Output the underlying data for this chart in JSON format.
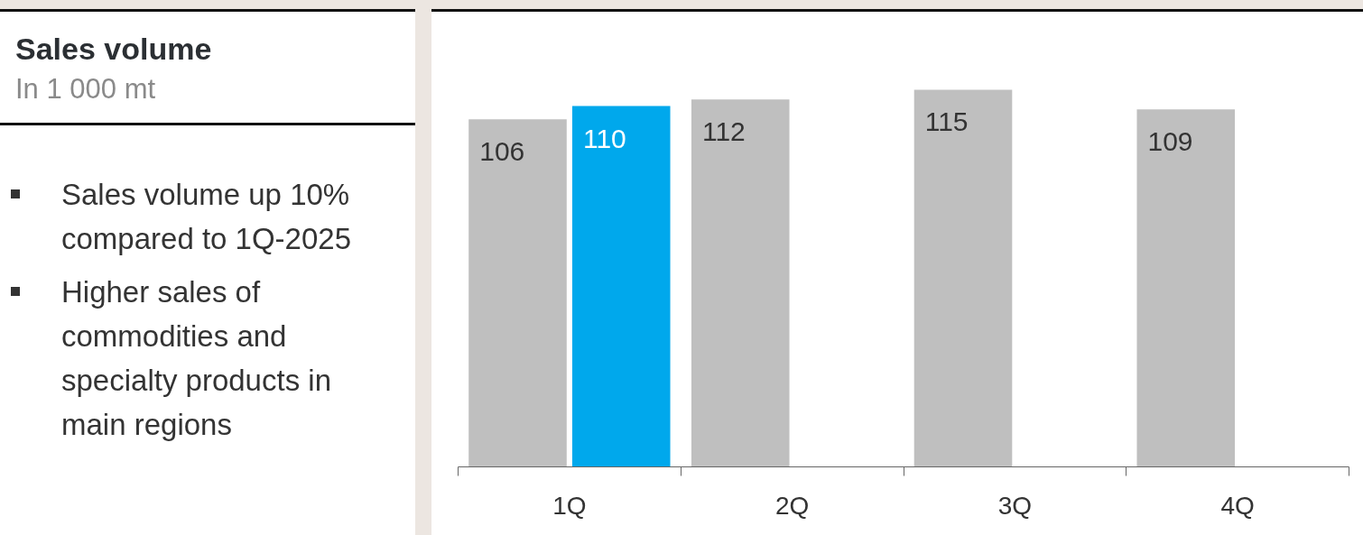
{
  "chart_data": {
    "type": "bar",
    "title": "Sales volume",
    "subtitle": "In 1 000 mt",
    "annotations": [
      "Sales volume up 10% compared to 1Q-2025",
      "Higher sales of commodities and specialty products in main regions"
    ],
    "categories": [
      "1Q",
      "2Q",
      "3Q",
      "4Q"
    ],
    "series": [
      {
        "color": "#bfbfbf",
        "values": [
          106,
          112,
          115,
          109
        ]
      },
      {
        "color": "#00a8ec",
        "values": [
          110,
          null,
          null,
          null
        ]
      }
    ],
    "tick_labels": "x",
    "data_labels": true
  }
}
